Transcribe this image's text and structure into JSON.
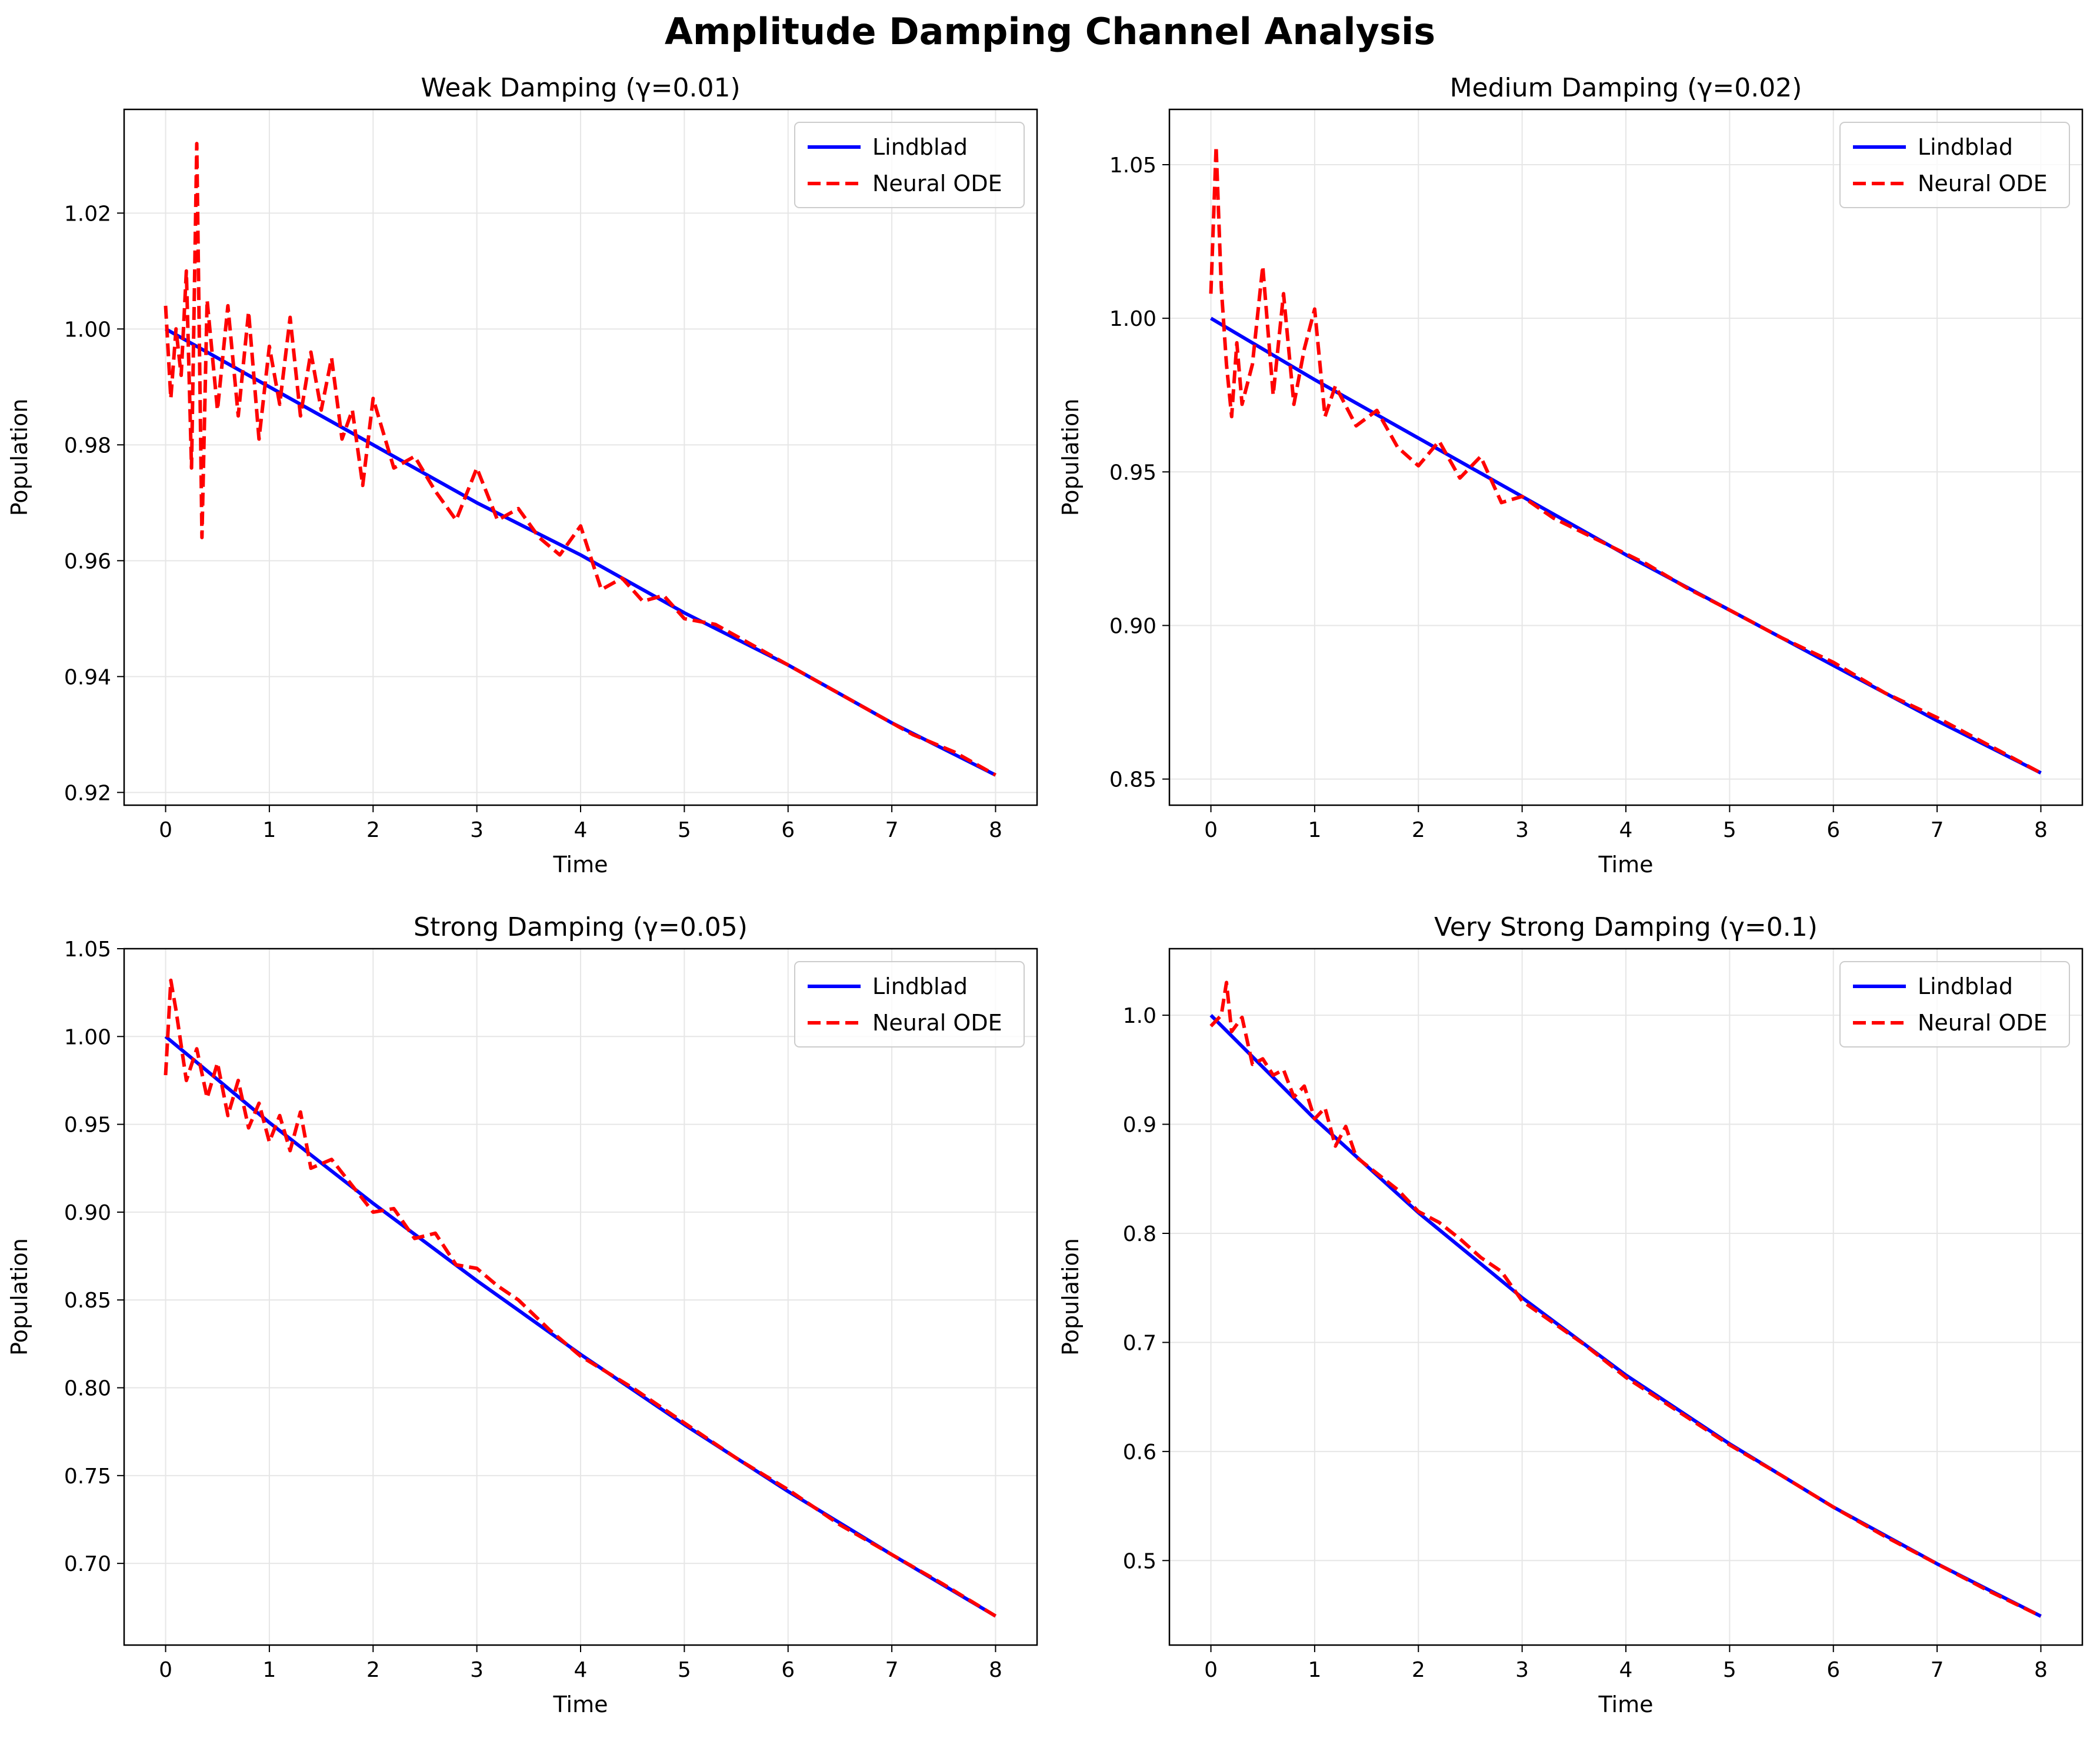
{
  "suptitle": "Amplitude Damping Channel Analysis",
  "legend_placement": "upper right",
  "colors": {
    "lindblad": "#0000ff",
    "neural_ode": "#ff0000",
    "grid": "#e6e6e6"
  },
  "chart_data": [
    {
      "type": "line",
      "title": "Weak Damping (γ=0.01)",
      "xlabel": "Time",
      "ylabel": "Population",
      "xlim": [
        -0.4,
        8.4
      ],
      "ylim": [
        0.9178,
        1.0379
      ],
      "xticks": [
        0,
        1,
        2,
        3,
        4,
        5,
        6,
        7,
        8
      ],
      "yticks": [
        0.92,
        0.94,
        0.96,
        0.98,
        1.0,
        1.02
      ],
      "ytick_labels": [
        "0.92",
        "0.94",
        "0.96",
        "0.98",
        "1.00",
        "1.02"
      ],
      "grid": true,
      "gamma": 0.01,
      "series": [
        {
          "name": "Lindblad",
          "style": "solid",
          "color": "#0000ff",
          "x": [
            0,
            1,
            2,
            3,
            4,
            5,
            6,
            7,
            8
          ],
          "y": [
            1.0,
            0.99,
            0.98,
            0.97,
            0.961,
            0.951,
            0.942,
            0.932,
            0.923
          ]
        },
        {
          "name": "Neural ODE",
          "style": "dashed",
          "color": "#ff0000",
          "x": [
            0,
            0.05,
            0.1,
            0.15,
            0.2,
            0.25,
            0.3,
            0.35,
            0.4,
            0.5,
            0.6,
            0.7,
            0.8,
            0.9,
            1.0,
            1.1,
            1.2,
            1.3,
            1.4,
            1.5,
            1.6,
            1.7,
            1.8,
            1.9,
            2.0,
            2.2,
            2.4,
            2.6,
            2.8,
            3.0,
            3.2,
            3.4,
            3.6,
            3.8,
            4.0,
            4.2,
            4.4,
            4.6,
            4.8,
            5.0,
            5.3,
            5.6,
            6.0,
            6.4,
            6.8,
            7.2,
            7.6,
            8.0
          ],
          "y": [
            1.004,
            0.988,
            1.0,
            0.992,
            1.01,
            0.976,
            1.032,
            0.964,
            1.005,
            0.986,
            1.004,
            0.985,
            1.003,
            0.981,
            0.997,
            0.987,
            1.002,
            0.985,
            0.996,
            0.986,
            0.995,
            0.981,
            0.986,
            0.973,
            0.988,
            0.976,
            0.978,
            0.972,
            0.967,
            0.976,
            0.967,
            0.969,
            0.964,
            0.961,
            0.966,
            0.955,
            0.957,
            0.953,
            0.954,
            0.95,
            0.949,
            0.946,
            0.942,
            0.938,
            0.934,
            0.93,
            0.927,
            0.923
          ]
        }
      ]
    },
    {
      "type": "line",
      "title": "Medium Damping (γ=0.02)",
      "xlabel": "Time",
      "ylabel": "Population",
      "xlim": [
        -0.4,
        8.4
      ],
      "ylim": [
        0.8415,
        1.068
      ],
      "xticks": [
        0,
        1,
        2,
        3,
        4,
        5,
        6,
        7,
        8
      ],
      "yticks": [
        0.85,
        0.9,
        0.95,
        1.0,
        1.05
      ],
      "ytick_labels": [
        "0.85",
        "0.90",
        "0.95",
        "1.00",
        "1.05"
      ],
      "grid": true,
      "gamma": 0.02,
      "series": [
        {
          "name": "Lindblad",
          "style": "solid",
          "color": "#0000ff",
          "x": [
            0,
            1,
            2,
            3,
            4,
            5,
            6,
            7,
            8
          ],
          "y": [
            1.0,
            0.98,
            0.961,
            0.942,
            0.923,
            0.905,
            0.887,
            0.869,
            0.852
          ]
        },
        {
          "name": "Neural ODE",
          "style": "dashed",
          "color": "#ff0000",
          "x": [
            0,
            0.05,
            0.1,
            0.15,
            0.2,
            0.25,
            0.3,
            0.4,
            0.5,
            0.6,
            0.7,
            0.8,
            0.9,
            1.0,
            1.1,
            1.2,
            1.4,
            1.6,
            1.8,
            2.0,
            2.2,
            2.4,
            2.6,
            2.8,
            3.0,
            3.3,
            3.6,
            3.9,
            4.2,
            4.6,
            5.0,
            5.5,
            6.0,
            6.5,
            7.0,
            7.5,
            8.0
          ],
          "y": [
            1.008,
            1.056,
            1.01,
            0.985,
            0.968,
            0.992,
            0.972,
            0.985,
            1.017,
            0.975,
            1.008,
            0.972,
            0.99,
            1.003,
            0.968,
            0.978,
            0.965,
            0.97,
            0.958,
            0.952,
            0.96,
            0.948,
            0.955,
            0.94,
            0.942,
            0.935,
            0.93,
            0.925,
            0.92,
            0.912,
            0.905,
            0.896,
            0.888,
            0.878,
            0.87,
            0.861,
            0.852
          ]
        }
      ]
    },
    {
      "type": "line",
      "title": "Strong Damping (γ=0.05)",
      "xlabel": "Time",
      "ylabel": "Population",
      "xlim": [
        -0.4,
        8.4
      ],
      "ylim": [
        0.6535,
        1.05
      ],
      "xticks": [
        0,
        1,
        2,
        3,
        4,
        5,
        6,
        7,
        8
      ],
      "yticks": [
        0.7,
        0.75,
        0.8,
        0.85,
        0.9,
        0.95,
        1.0,
        1.05
      ],
      "ytick_labels": [
        "0.70",
        "0.75",
        "0.80",
        "0.85",
        "0.90",
        "0.95",
        "1.00",
        "1.05"
      ],
      "grid": true,
      "gamma": 0.05,
      "series": [
        {
          "name": "Lindblad",
          "style": "solid",
          "color": "#0000ff",
          "x": [
            0,
            1,
            2,
            3,
            4,
            5,
            6,
            7,
            8
          ],
          "y": [
            1.0,
            0.951,
            0.905,
            0.861,
            0.819,
            0.779,
            0.741,
            0.705,
            0.67
          ]
        },
        {
          "name": "Neural ODE",
          "style": "dashed",
          "color": "#ff0000",
          "x": [
            0,
            0.05,
            0.1,
            0.2,
            0.3,
            0.4,
            0.5,
            0.6,
            0.7,
            0.8,
            0.9,
            1.0,
            1.1,
            1.2,
            1.3,
            1.4,
            1.6,
            1.8,
            2.0,
            2.2,
            2.4,
            2.6,
            2.8,
            3.0,
            3.2,
            3.4,
            3.7,
            4.0,
            4.5,
            5.0,
            5.5,
            6.0,
            6.5,
            7.0,
            7.5,
            8.0
          ],
          "y": [
            0.978,
            1.032,
            1.015,
            0.975,
            0.993,
            0.965,
            0.985,
            0.955,
            0.975,
            0.948,
            0.962,
            0.94,
            0.955,
            0.935,
            0.957,
            0.925,
            0.93,
            0.915,
            0.9,
            0.902,
            0.885,
            0.888,
            0.87,
            0.868,
            0.858,
            0.85,
            0.833,
            0.818,
            0.8,
            0.78,
            0.76,
            0.742,
            0.722,
            0.705,
            0.688,
            0.67
          ]
        }
      ]
    },
    {
      "type": "line",
      "title": "Very Strong Damping (γ=0.1)",
      "xlabel": "Time",
      "ylabel": "Population",
      "xlim": [
        -0.4,
        8.4
      ],
      "ylim": [
        0.4225,
        1.061
      ],
      "xticks": [
        0,
        1,
        2,
        3,
        4,
        5,
        6,
        7,
        8
      ],
      "yticks": [
        0.5,
        0.6,
        0.7,
        0.8,
        0.9,
        1.0
      ],
      "ytick_labels": [
        "0.5",
        "0.6",
        "0.7",
        "0.8",
        "0.9",
        "1.0"
      ],
      "grid": true,
      "gamma": 0.1,
      "series": [
        {
          "name": "Lindblad",
          "style": "solid",
          "color": "#0000ff",
          "x": [
            0,
            1,
            2,
            3,
            4,
            5,
            6,
            7,
            8
          ],
          "y": [
            1.0,
            0.905,
            0.819,
            0.741,
            0.67,
            0.607,
            0.549,
            0.497,
            0.449
          ]
        },
        {
          "name": "Neural ODE",
          "style": "dashed",
          "color": "#ff0000",
          "x": [
            0,
            0.1,
            0.15,
            0.2,
            0.3,
            0.4,
            0.5,
            0.6,
            0.7,
            0.8,
            0.9,
            1.0,
            1.1,
            1.2,
            1.3,
            1.4,
            1.6,
            1.8,
            2.0,
            2.2,
            2.4,
            2.6,
            2.8,
            3.0,
            3.3,
            3.6,
            4.0,
            4.5,
            5.0,
            5.5,
            6.0,
            6.5,
            7.0,
            7.5,
            8.0
          ],
          "y": [
            0.99,
            1.0,
            1.03,
            0.985,
            0.998,
            0.955,
            0.96,
            0.945,
            0.95,
            0.925,
            0.935,
            0.905,
            0.915,
            0.88,
            0.898,
            0.87,
            0.855,
            0.84,
            0.82,
            0.81,
            0.795,
            0.778,
            0.765,
            0.738,
            0.718,
            0.698,
            0.668,
            0.637,
            0.606,
            0.578,
            0.549,
            0.522,
            0.497,
            0.472,
            0.449
          ]
        }
      ]
    }
  ]
}
